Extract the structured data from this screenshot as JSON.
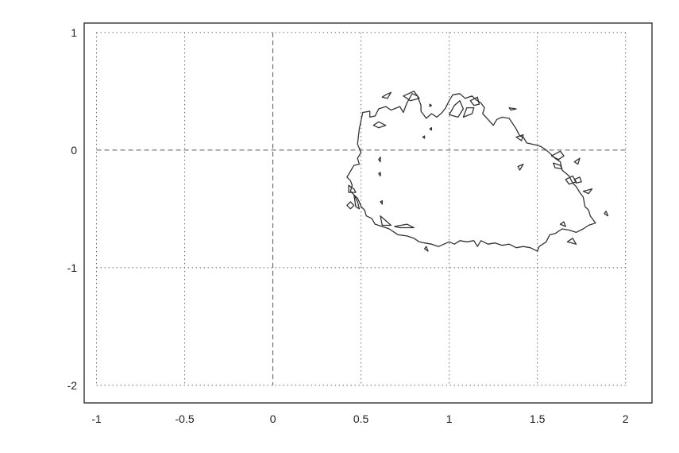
{
  "chart_data": {
    "type": "line",
    "title": "",
    "xlabel": "",
    "ylabel": "",
    "xlim": [
      -1.07,
      2.15
    ],
    "ylim": [
      -2.15,
      1.08
    ],
    "x_ticks": [
      -1,
      -0.5,
      0,
      0.5,
      1,
      1.5,
      2
    ],
    "x_tick_labels": [
      "-1",
      "-0.5",
      "0",
      "0.5",
      "1",
      "1.5",
      "2"
    ],
    "y_ticks": [
      1,
      0,
      -1,
      -2
    ],
    "y_tick_labels": [
      "1",
      "0",
      "-1",
      "-2"
    ],
    "grid": true,
    "grid_style": "dotted",
    "zero_lines": "dashed",
    "grid_extent": {
      "x": [
        -1,
        2
      ],
      "y": [
        -2,
        1
      ]
    },
    "colors": {
      "line": "#333333",
      "grid": "#666666",
      "frame": "#222222"
    },
    "series": [
      {
        "kind": "closed",
        "points": [
          [
            0.48,
            0.05
          ],
          [
            0.49,
            0.18
          ],
          [
            0.5,
            0.25
          ],
          [
            0.51,
            0.32
          ],
          [
            0.55,
            0.33
          ],
          [
            0.55,
            0.28
          ],
          [
            0.58,
            0.29
          ],
          [
            0.6,
            0.35
          ],
          [
            0.64,
            0.37
          ],
          [
            0.67,
            0.34
          ],
          [
            0.72,
            0.37
          ],
          [
            0.74,
            0.32
          ],
          [
            0.76,
            0.4
          ],
          [
            0.79,
            0.48
          ],
          [
            0.82,
            0.46
          ],
          [
            0.84,
            0.38
          ],
          [
            0.84,
            0.33
          ],
          [
            0.87,
            0.27
          ],
          [
            0.9,
            0.31
          ],
          [
            0.93,
            0.28
          ],
          [
            0.96,
            0.32
          ],
          [
            0.98,
            0.36
          ],
          [
            1.0,
            0.42
          ],
          [
            1.02,
            0.47
          ],
          [
            1.06,
            0.48
          ],
          [
            1.09,
            0.44
          ],
          [
            1.13,
            0.46
          ],
          [
            1.15,
            0.43
          ],
          [
            1.18,
            0.4
          ],
          [
            1.2,
            0.36
          ],
          [
            1.19,
            0.31
          ],
          [
            1.22,
            0.26
          ],
          [
            1.25,
            0.21
          ],
          [
            1.27,
            0.26
          ],
          [
            1.3,
            0.28
          ],
          [
            1.34,
            0.27
          ],
          [
            1.38,
            0.18
          ],
          [
            1.4,
            0.12
          ],
          [
            1.42,
            0.11
          ],
          [
            1.44,
            0.06
          ],
          [
            1.47,
            0.05
          ],
          [
            1.5,
            0.04
          ],
          [
            1.52,
            0.03
          ],
          [
            1.55,
            0.0
          ],
          [
            1.58,
            -0.04
          ],
          [
            1.6,
            -0.07
          ],
          [
            1.63,
            -0.1
          ],
          [
            1.64,
            -0.17
          ],
          [
            1.68,
            -0.22
          ],
          [
            1.7,
            -0.28
          ],
          [
            1.72,
            -0.31
          ],
          [
            1.74,
            -0.36
          ],
          [
            1.76,
            -0.4
          ],
          [
            1.77,
            -0.48
          ],
          [
            1.79,
            -0.51
          ],
          [
            1.8,
            -0.56
          ],
          [
            1.83,
            -0.62
          ],
          [
            1.79,
            -0.64
          ],
          [
            1.76,
            -0.67
          ],
          [
            1.72,
            -0.7
          ],
          [
            1.68,
            -0.68
          ],
          [
            1.64,
            -0.67
          ],
          [
            1.6,
            -0.71
          ],
          [
            1.57,
            -0.72
          ],
          [
            1.55,
            -0.78
          ],
          [
            1.51,
            -0.82
          ],
          [
            1.5,
            -0.86
          ],
          [
            1.46,
            -0.83
          ],
          [
            1.42,
            -0.82
          ],
          [
            1.38,
            -0.83
          ],
          [
            1.34,
            -0.8
          ],
          [
            1.3,
            -0.81
          ],
          [
            1.26,
            -0.79
          ],
          [
            1.22,
            -0.8
          ],
          [
            1.18,
            -0.77
          ],
          [
            1.16,
            -0.82
          ],
          [
            1.14,
            -0.77
          ],
          [
            1.1,
            -0.78
          ],
          [
            1.06,
            -0.77
          ],
          [
            1.03,
            -0.8
          ],
          [
            1.0,
            -0.78
          ],
          [
            0.97,
            -0.8
          ],
          [
            0.94,
            -0.82
          ],
          [
            0.9,
            -0.8
          ],
          [
            0.86,
            -0.79
          ],
          [
            0.83,
            -0.78
          ],
          [
            0.8,
            -0.75
          ],
          [
            0.76,
            -0.73
          ],
          [
            0.71,
            -0.72
          ],
          [
            0.66,
            -0.67
          ],
          [
            0.62,
            -0.65
          ],
          [
            0.58,
            -0.63
          ],
          [
            0.56,
            -0.58
          ],
          [
            0.53,
            -0.56
          ],
          [
            0.52,
            -0.51
          ],
          [
            0.5,
            -0.48
          ],
          [
            0.49,
            -0.44
          ],
          [
            0.48,
            -0.41
          ],
          [
            0.46,
            -0.38
          ],
          [
            0.44,
            -0.35
          ],
          [
            0.45,
            -0.3
          ],
          [
            0.44,
            -0.26
          ],
          [
            0.42,
            -0.23
          ],
          [
            0.44,
            -0.18
          ],
          [
            0.46,
            -0.13
          ],
          [
            0.49,
            -0.12
          ],
          [
            0.48,
            -0.07
          ],
          [
            0.5,
            -0.02
          ]
        ]
      },
      {
        "kind": "closed",
        "points": [
          [
            0.61,
            -0.56
          ],
          [
            0.64,
            -0.6
          ],
          [
            0.67,
            -0.64
          ],
          [
            0.62,
            -0.64
          ]
        ]
      },
      {
        "kind": "closed",
        "points": [
          [
            0.43,
            -0.3
          ],
          [
            0.46,
            -0.33
          ],
          [
            0.47,
            -0.36
          ],
          [
            0.43,
            -0.36
          ]
        ]
      },
      {
        "kind": "closed",
        "points": [
          [
            0.46,
            -0.38
          ],
          [
            0.48,
            -0.44
          ],
          [
            0.49,
            -0.5
          ],
          [
            0.47,
            -0.48
          ]
        ]
      },
      {
        "kind": "closed",
        "points": [
          [
            0.44,
            -0.44
          ],
          [
            0.46,
            -0.47
          ],
          [
            0.44,
            -0.5
          ],
          [
            0.42,
            -0.47
          ]
        ]
      },
      {
        "kind": "closed",
        "points": [
          [
            0.69,
            -0.65
          ],
          [
            0.76,
            -0.63
          ],
          [
            0.8,
            -0.66
          ],
          [
            0.72,
            -0.66
          ]
        ]
      },
      {
        "kind": "closed",
        "points": [
          [
            0.6,
            0.24
          ],
          [
            0.64,
            0.21
          ],
          [
            0.6,
            0.19
          ],
          [
            0.57,
            0.21
          ]
        ]
      },
      {
        "kind": "closed",
        "points": [
          [
            0.64,
            0.47
          ],
          [
            0.67,
            0.49
          ],
          [
            0.65,
            0.44
          ],
          [
            0.62,
            0.45
          ]
        ]
      },
      {
        "kind": "closed",
        "points": [
          [
            0.74,
            0.46
          ],
          [
            0.8,
            0.5
          ],
          [
            0.83,
            0.44
          ],
          [
            0.78,
            0.42
          ]
        ]
      },
      {
        "kind": "closed",
        "points": [
          [
            0.89,
            0.39
          ],
          [
            0.9,
            0.38
          ],
          [
            0.89,
            0.37
          ]
        ]
      },
      {
        "kind": "closed",
        "points": [
          [
            1.0,
            0.3
          ],
          [
            1.03,
            0.38
          ],
          [
            1.06,
            0.42
          ],
          [
            1.08,
            0.35
          ],
          [
            1.05,
            0.28
          ]
        ]
      },
      {
        "kind": "closed",
        "points": [
          [
            1.08,
            0.28
          ],
          [
            1.1,
            0.36
          ],
          [
            1.14,
            0.36
          ],
          [
            1.13,
            0.31
          ]
        ]
      },
      {
        "kind": "closed",
        "points": [
          [
            1.12,
            0.42
          ],
          [
            1.16,
            0.45
          ],
          [
            1.17,
            0.39
          ],
          [
            1.14,
            0.38
          ]
        ]
      },
      {
        "kind": "closed",
        "points": [
          [
            1.34,
            0.36
          ],
          [
            1.38,
            0.35
          ],
          [
            1.35,
            0.34
          ]
        ]
      },
      {
        "kind": "closed",
        "points": [
          [
            1.38,
            0.11
          ],
          [
            1.42,
            0.13
          ],
          [
            1.41,
            0.08
          ]
        ]
      },
      {
        "kind": "closed",
        "points": [
          [
            1.58,
            -0.05
          ],
          [
            1.63,
            -0.01
          ],
          [
            1.65,
            -0.05
          ],
          [
            1.62,
            -0.08
          ]
        ]
      },
      {
        "kind": "closed",
        "points": [
          [
            1.59,
            -0.11
          ],
          [
            1.63,
            -0.13
          ],
          [
            1.64,
            -0.16
          ],
          [
            1.6,
            -0.15
          ]
        ]
      },
      {
        "kind": "closed",
        "points": [
          [
            1.66,
            -0.25
          ],
          [
            1.7,
            -0.22
          ],
          [
            1.72,
            -0.27
          ],
          [
            1.68,
            -0.29
          ]
        ]
      },
      {
        "kind": "closed",
        "points": [
          [
            1.71,
            -0.25
          ],
          [
            1.74,
            -0.23
          ],
          [
            1.75,
            -0.27
          ],
          [
            1.72,
            -0.28
          ]
        ]
      },
      {
        "kind": "closed",
        "points": [
          [
            1.71,
            -0.1
          ],
          [
            1.74,
            -0.07
          ],
          [
            1.73,
            -0.12
          ]
        ]
      },
      {
        "kind": "closed",
        "points": [
          [
            1.76,
            -0.35
          ],
          [
            1.81,
            -0.33
          ],
          [
            1.79,
            -0.37
          ]
        ]
      },
      {
        "kind": "closed",
        "points": [
          [
            1.88,
            -0.54
          ],
          [
            1.89,
            -0.52
          ],
          [
            1.9,
            -0.56
          ]
        ]
      },
      {
        "kind": "closed",
        "points": [
          [
            1.39,
            -0.14
          ],
          [
            1.42,
            -0.12
          ],
          [
            1.4,
            -0.17
          ]
        ]
      },
      {
        "kind": "closed",
        "points": [
          [
            1.67,
            -0.78
          ],
          [
            1.7,
            -0.75
          ],
          [
            1.72,
            -0.8
          ]
        ]
      },
      {
        "kind": "closed",
        "points": [
          [
            1.63,
            -0.63
          ],
          [
            1.65,
            -0.61
          ],
          [
            1.66,
            -0.65
          ]
        ]
      },
      {
        "kind": "closed",
        "points": [
          [
            0.6,
            -0.08
          ],
          [
            0.61,
            -0.06
          ],
          [
            0.61,
            -0.1
          ]
        ]
      },
      {
        "kind": "closed",
        "points": [
          [
            0.6,
            -0.2
          ],
          [
            0.61,
            -0.19
          ],
          [
            0.61,
            -0.22
          ]
        ]
      },
      {
        "kind": "closed",
        "points": [
          [
            0.61,
            -0.44
          ],
          [
            0.62,
            -0.43
          ],
          [
            0.62,
            -0.46
          ]
        ]
      },
      {
        "kind": "closed",
        "points": [
          [
            0.86,
            -0.84
          ],
          [
            0.87,
            -0.82
          ],
          [
            0.88,
            -0.86
          ]
        ]
      },
      {
        "kind": "closed",
        "points": [
          [
            0.85,
            0.11
          ],
          [
            0.86,
            0.12
          ],
          [
            0.86,
            0.1
          ]
        ]
      },
      {
        "kind": "closed",
        "points": [
          [
            0.89,
            0.18
          ],
          [
            0.9,
            0.19
          ],
          [
            0.9,
            0.17
          ]
        ]
      }
    ]
  }
}
